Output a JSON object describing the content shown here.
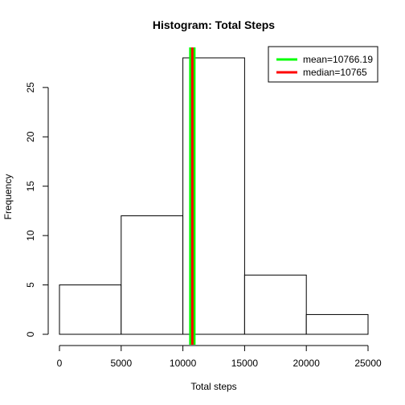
{
  "chart_data": {
    "type": "bar",
    "title": "Histogram: Total Steps",
    "xlabel": "Total steps",
    "ylabel": "Frequency",
    "bins": [
      {
        "from": 0,
        "to": 5000,
        "count": 5
      },
      {
        "from": 5000,
        "to": 10000,
        "count": 12
      },
      {
        "from": 10000,
        "to": 15000,
        "count": 28
      },
      {
        "from": 15000,
        "to": 20000,
        "count": 6
      },
      {
        "from": 20000,
        "to": 25000,
        "count": 2
      }
    ],
    "xlim": [
      0,
      25000
    ],
    "ylim": [
      0,
      28
    ],
    "x_ticks": [
      "0",
      "5000",
      "10000",
      "15000",
      "20000",
      "25000"
    ],
    "y_ticks": [
      "0",
      "5",
      "10",
      "15",
      "20",
      "25"
    ],
    "bar_fill": "#ffffff",
    "bar_stroke": "#000000",
    "grid": false,
    "reference_lines": [
      {
        "label": "mean=10766.19",
        "value": 10766.19,
        "color": "#00ff00"
      },
      {
        "label": "median=10765",
        "value": 10765,
        "color": "#ff0000"
      }
    ],
    "legend_position": "top-right"
  }
}
